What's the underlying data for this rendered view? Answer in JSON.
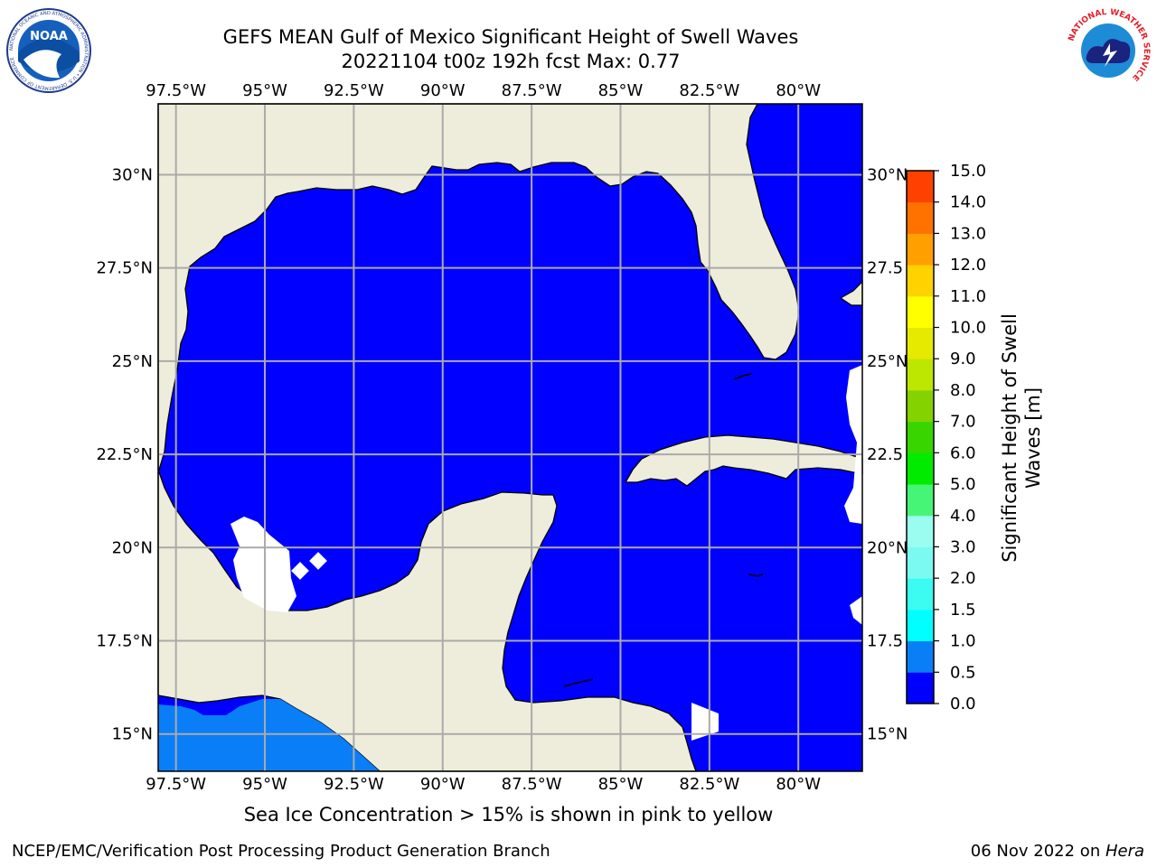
{
  "title_line1": "GEFS MEAN Gulf of Mexico Significant Height of Swell Waves",
  "title_line2": "20221104 t00z 192h fcst   Max: 0.77",
  "lon_labels": [
    "97.5°W",
    "95°W",
    "92.5°W",
    "90°W",
    "87.5°W",
    "85°W",
    "82.5°W",
    "80°W"
  ],
  "lat_labels": [
    "30°N",
    "27.5°N",
    "25°N",
    "22.5°N",
    "20°N",
    "17.5°N",
    "15°N"
  ],
  "lat_labels_right": [
    "30°N",
    "27.5",
    "25°N",
    "22.5",
    "20°N",
    "17.5",
    "15°N"
  ],
  "lon_values": [
    -97.5,
    -95,
    -92.5,
    -90,
    -87.5,
    -85,
    -82.5,
    -80
  ],
  "lat_values": [
    30,
    27.5,
    25,
    22.5,
    20,
    17.5,
    15
  ],
  "map_extent": {
    "lon_min": -98,
    "lon_max": -78.2,
    "lat_min": 14,
    "lat_max": 31.9
  },
  "colorbar": {
    "label": "Significant Height of Swell Waves [m]",
    "tick_labels": [
      "0.0",
      "0.5",
      "1.0",
      "1.5",
      "2.0",
      "3.0",
      "4.0",
      "5.0",
      "6.0",
      "7.0",
      "8.0",
      "9.0",
      "10.0",
      "11.0",
      "12.0",
      "13.0",
      "14.0",
      "15.0"
    ],
    "colors": [
      "#0000ff",
      "#0a7ef7",
      "#00ffff",
      "#3cfbf0",
      "#7afaf0",
      "#9afdef",
      "#46f476",
      "#00eb00",
      "#39d500",
      "#84d200",
      "#bde600",
      "#e6ea00",
      "#ffff00",
      "#ffd200",
      "#ff9f00",
      "#ff7200",
      "#ff4100",
      "#ff0000"
    ]
  },
  "map_colors": {
    "land": "#eeeddb",
    "ocean": "#0000ff",
    "swell_pacific": "#0a7ef7",
    "grid": "#aaaaaa",
    "missing": "#ffffff"
  },
  "subtitle": "Sea Ice Concentration > 15% is shown in pink to yellow",
  "footer_left": "NCEP/EMC/Verification Post Processing Product Generation Branch",
  "footer_date": "06 Nov 2022 on ",
  "footer_host": "Hera",
  "logos": {
    "left_text": "NOAA",
    "left_ring": "NATIONAL OCEANIC AND ATMOSPHERIC ADMINISTRATION • U.S. DEPARTMENT OF COMMERCE",
    "right_ring": "NATIONAL WEATHER SERVICE"
  }
}
